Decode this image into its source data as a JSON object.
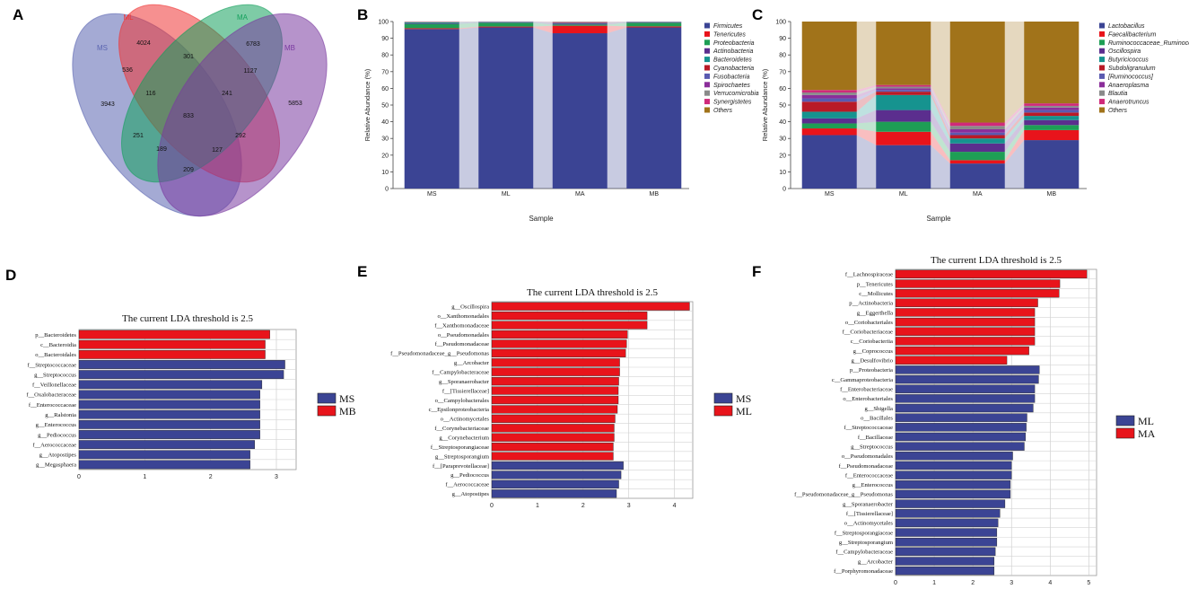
{
  "colors": {
    "ms": "#3b4494",
    "red": "#e8141b",
    "connector": "#c8cce0",
    "venn_ms": "#5a64b0",
    "venn_ml": "#ee3434",
    "venn_ma": "#14a05c",
    "venn_mb": "#7a3aa0"
  },
  "chart_data": [
    {
      "panel": "A",
      "type": "venn",
      "sets": [
        {
          "name": "MS",
          "color": "#5a64b0"
        },
        {
          "name": "ML",
          "color": "#ee3434"
        },
        {
          "name": "MA",
          "color": "#14a05c"
        },
        {
          "name": "MB",
          "color": "#7a3aa0"
        }
      ],
      "regions": [
        {
          "sets": "ML",
          "value": "4024"
        },
        {
          "sets": "MA",
          "value": "6783"
        },
        {
          "sets": "ML+MA",
          "value": "301"
        },
        {
          "sets": "MS+ML",
          "value": "536"
        },
        {
          "sets": "MA+MB",
          "value": "1127"
        },
        {
          "sets": "MS+ML+MA",
          "value": "116"
        },
        {
          "sets": "ML+MA+MB",
          "value": "241"
        },
        {
          "sets": "MS",
          "value": "3943"
        },
        {
          "sets": "MB",
          "value": "5853"
        },
        {
          "sets": "MS+ML+MA+MB",
          "value": "833"
        },
        {
          "sets": "MS+MA",
          "value": "251"
        },
        {
          "sets": "ML+MB",
          "value": "292"
        },
        {
          "sets": "MS+MA+MB",
          "value": "189"
        },
        {
          "sets": "MS+ML+MB",
          "value": "127"
        },
        {
          "sets": "MS+MB",
          "value": "209"
        }
      ]
    },
    {
      "panel": "B",
      "type": "bar",
      "stacked": true,
      "categories": [
        "MS",
        "ML",
        "MA",
        "MB"
      ],
      "xlabel": "Sample",
      "ylabel": "Relative Abundance (%)",
      "ylim": [
        0,
        100
      ],
      "yticks": [
        "0",
        "10",
        "20",
        "30",
        "40",
        "50",
        "60",
        "70",
        "80",
        "90",
        "100"
      ],
      "series": [
        {
          "name": "Firmicutes",
          "color": "#3b4494",
          "values": [
            95.5,
            96.5,
            93,
            96.5
          ]
        },
        {
          "name": "Tenericutes",
          "color": "#e8141b",
          "values": [
            0.5,
            0.5,
            4.5,
            0.6
          ]
        },
        {
          "name": "Proteobacteria",
          "color": "#1e9e55",
          "values": [
            2.6,
            2.3,
            0.7,
            2.2
          ]
        },
        {
          "name": "Actinobacteria",
          "color": "#5b2e8e",
          "values": [
            0.4,
            0.3,
            0.5,
            0.3
          ]
        },
        {
          "name": "Bacteroidetes",
          "color": "#16938f",
          "values": [
            0.5,
            0.2,
            0.3,
            0.2
          ]
        },
        {
          "name": "Cyanobacteria",
          "color": "#b91a26",
          "values": [
            0.1,
            0.05,
            0.2,
            0.05
          ]
        },
        {
          "name": "Fusobacteria",
          "color": "#5a5ab0",
          "values": [
            0.1,
            0.05,
            0.2,
            0.05
          ]
        },
        {
          "name": "Spirochaetes",
          "color": "#8b2e9a",
          "values": [
            0.1,
            0.05,
            0.2,
            0.05
          ]
        },
        {
          "name": "Verrucomicrobia",
          "color": "#8a8a8a",
          "values": [
            0.05,
            0.05,
            0.2,
            0.02
          ]
        },
        {
          "name": "Synergistetes",
          "color": "#d02a7a",
          "values": [
            0.05,
            0.05,
            0.1,
            0.03
          ]
        },
        {
          "name": "Others",
          "color": "#a1731a",
          "values": [
            0.1,
            0,
            0.1,
            0
          ]
        }
      ]
    },
    {
      "panel": "C",
      "type": "bar",
      "stacked": true,
      "categories": [
        "MS",
        "ML",
        "MA",
        "MB"
      ],
      "xlabel": "Sample",
      "ylabel": "Relative Abundance (%)",
      "ylim": [
        0,
        100
      ],
      "yticks": [
        "0",
        "10",
        "20",
        "30",
        "40",
        "50",
        "60",
        "70",
        "80",
        "90",
        "100"
      ],
      "series": [
        {
          "name": "Lactobacillus",
          "color": "#3b4494",
          "values": [
            32,
            26,
            15,
            29
          ]
        },
        {
          "name": "Faecalibacterium",
          "color": "#e8141b",
          "values": [
            4,
            8,
            2,
            6
          ]
        },
        {
          "name": "Ruminococcaceae_Ruminococcus",
          "color": "#1e9e55",
          "values": [
            3,
            6,
            5,
            3
          ]
        },
        {
          "name": "Oscillospira",
          "color": "#5b2e8e",
          "values": [
            3,
            7,
            5,
            3
          ]
        },
        {
          "name": "Butyricicoccus",
          "color": "#16938f",
          "values": [
            4,
            9,
            3,
            2.5
          ]
        },
        {
          "name": "Subdoligranulum",
          "color": "#b91a26",
          "values": [
            6,
            2,
            2,
            2
          ]
        },
        {
          "name": "[Ruminococcus]",
          "color": "#5a5ab0",
          "values": [
            2,
            1,
            1.5,
            1.5
          ]
        },
        {
          "name": "Anaeroplasma",
          "color": "#8b2e9a",
          "values": [
            2,
            1,
            2,
            1.5
          ]
        },
        {
          "name": "Blautia",
          "color": "#8a8a8a",
          "values": [
            1.5,
            1,
            2,
            1
          ]
        },
        {
          "name": "Anaerotruncus",
          "color": "#d02a7a",
          "values": [
            1.5,
            1,
            2,
            1.5
          ]
        },
        {
          "name": "Others",
          "color": "#a1731a",
          "values": [
            41,
            38,
            60.5,
            49
          ]
        }
      ]
    },
    {
      "panel": "D",
      "type": "bar",
      "orientation": "horizontal",
      "title": "The current LDA threshold is 2.5",
      "xlim": [
        0,
        3.3
      ],
      "xticks": [
        "0",
        "1",
        "2",
        "3"
      ],
      "legend": [
        {
          "name": "MS",
          "color": "#3b4494"
        },
        {
          "name": "MB",
          "color": "#e8141b"
        }
      ],
      "bars": [
        {
          "label": "p__Bacteroidetes",
          "value": 2.9,
          "group": "MB"
        },
        {
          "label": "c__Bacteroidia",
          "value": 2.83,
          "group": "MB"
        },
        {
          "label": "o__Bacteroidales",
          "value": 2.83,
          "group": "MB"
        },
        {
          "label": "f__Streptococcaceae",
          "value": 3.13,
          "group": "MS"
        },
        {
          "label": "g__Streptococcus",
          "value": 3.11,
          "group": "MS"
        },
        {
          "label": "f__Veillonellaceae",
          "value": 2.78,
          "group": "MS"
        },
        {
          "label": "f__Oxalobacteraceae",
          "value": 2.75,
          "group": "MS"
        },
        {
          "label": "f__Enterococcaceae",
          "value": 2.75,
          "group": "MS"
        },
        {
          "label": "g__Ralstonia",
          "value": 2.75,
          "group": "MS"
        },
        {
          "label": "g__Enterococcus",
          "value": 2.75,
          "group": "MS"
        },
        {
          "label": "g__Pediococcus",
          "value": 2.75,
          "group": "MS"
        },
        {
          "label": "f__Aerococcaceae",
          "value": 2.67,
          "group": "MS"
        },
        {
          "label": "g__Atopostipes",
          "value": 2.6,
          "group": "MS"
        },
        {
          "label": "g__Megasphaera",
          "value": 2.6,
          "group": "MS"
        }
      ]
    },
    {
      "panel": "E",
      "type": "bar",
      "orientation": "horizontal",
      "title": "The current LDA threshold is 2.5",
      "xlim": [
        0,
        4.4
      ],
      "xticks": [
        "0",
        "1",
        "2",
        "3",
        "4"
      ],
      "legend": [
        {
          "name": "MS",
          "color": "#3b4494"
        },
        {
          "name": "ML",
          "color": "#e8141b"
        }
      ],
      "bars": [
        {
          "label": "g__Oscillospira",
          "value": 4.33,
          "group": "ML"
        },
        {
          "label": "o__Xanthomonadales",
          "value": 3.4,
          "group": "ML"
        },
        {
          "label": "f__Xanthomonadaceae",
          "value": 3.4,
          "group": "ML"
        },
        {
          "label": "o__Pseudomonadales",
          "value": 2.97,
          "group": "ML"
        },
        {
          "label": "f__Pseudomonadaceae",
          "value": 2.95,
          "group": "ML"
        },
        {
          "label": "f__Pseudomonadaceae_g__Pseudomonas",
          "value": 2.93,
          "group": "ML"
        },
        {
          "label": "g__Arcobacter",
          "value": 2.8,
          "group": "ML"
        },
        {
          "label": "f__Campylobacteraceae",
          "value": 2.8,
          "group": "ML"
        },
        {
          "label": "g__Sporanaerobacter",
          "value": 2.78,
          "group": "ML"
        },
        {
          "label": "f__[Tissierellaceae]",
          "value": 2.77,
          "group": "ML"
        },
        {
          "label": "o__Campylobacterales",
          "value": 2.77,
          "group": "ML"
        },
        {
          "label": "c__Epsilonproteobacteria",
          "value": 2.75,
          "group": "ML"
        },
        {
          "label": "o__Actinomycetales",
          "value": 2.7,
          "group": "ML"
        },
        {
          "label": "f__Corynebacteriaceae",
          "value": 2.68,
          "group": "ML"
        },
        {
          "label": "g__Corynebacterium",
          "value": 2.68,
          "group": "ML"
        },
        {
          "label": "f__Streptosporangiaceae",
          "value": 2.66,
          "group": "ML"
        },
        {
          "label": "g__Streptosporangium",
          "value": 2.66,
          "group": "ML"
        },
        {
          "label": "f__[Paraprevotellaceae]",
          "value": 2.88,
          "group": "MS"
        },
        {
          "label": "g__Pediococcus",
          "value": 2.83,
          "group": "MS"
        },
        {
          "label": "f__Aerococcaceae",
          "value": 2.78,
          "group": "MS"
        },
        {
          "label": "g__Atopostipes",
          "value": 2.73,
          "group": "MS"
        }
      ]
    },
    {
      "panel": "F",
      "type": "bar",
      "orientation": "horizontal",
      "title": "The current LDA threshold is 2.5",
      "xlim": [
        0,
        5.2
      ],
      "xticks": [
        "0",
        "1",
        "2",
        "3",
        "4",
        "5"
      ],
      "legend": [
        {
          "name": "ML",
          "color": "#3b4494"
        },
        {
          "name": "MA",
          "color": "#e8141b"
        }
      ],
      "bars": [
        {
          "label": "f__Lachnospiraceae",
          "value": 4.95,
          "group": "MA"
        },
        {
          "label": "p__Tenericutes",
          "value": 4.25,
          "group": "MA"
        },
        {
          "label": "c__Mollicutes",
          "value": 4.23,
          "group": "MA"
        },
        {
          "label": "p__Actinobacteria",
          "value": 3.68,
          "group": "MA"
        },
        {
          "label": "g__Eggerthella",
          "value": 3.6,
          "group": "MA"
        },
        {
          "label": "o__Coriobacteriales",
          "value": 3.6,
          "group": "MA"
        },
        {
          "label": "f__Coriobacteriaceae",
          "value": 3.6,
          "group": "MA"
        },
        {
          "label": "c__Coriobacteriia",
          "value": 3.6,
          "group": "MA"
        },
        {
          "label": "g__Coprococcus",
          "value": 3.45,
          "group": "MA"
        },
        {
          "label": "g__Desulfovibrio",
          "value": 2.88,
          "group": "MA"
        },
        {
          "label": "p__Proteobacteria",
          "value": 3.72,
          "group": "ML"
        },
        {
          "label": "c__Gammaproteobacteria",
          "value": 3.7,
          "group": "ML"
        },
        {
          "label": "f__Enterobacteriaceae",
          "value": 3.6,
          "group": "ML"
        },
        {
          "label": "o__Enterobacteriales",
          "value": 3.6,
          "group": "ML"
        },
        {
          "label": "g__Shigella",
          "value": 3.56,
          "group": "ML"
        },
        {
          "label": "o__Bacillales",
          "value": 3.4,
          "group": "ML"
        },
        {
          "label": "f__Streptococcaceae",
          "value": 3.38,
          "group": "ML"
        },
        {
          "label": "f__Bacillaceae",
          "value": 3.36,
          "group": "ML"
        },
        {
          "label": "g__Streptococcus",
          "value": 3.33,
          "group": "ML"
        },
        {
          "label": "o__Pseudomonadales",
          "value": 3.03,
          "group": "ML"
        },
        {
          "label": "f__Pseudomonadaceae",
          "value": 3.0,
          "group": "ML"
        },
        {
          "label": "f__Enterococcaceae",
          "value": 3.0,
          "group": "ML"
        },
        {
          "label": "g__Enterococcus",
          "value": 2.97,
          "group": "ML"
        },
        {
          "label": "f__Pseudomonadaceae_g__Pseudomonas",
          "value": 2.97,
          "group": "ML"
        },
        {
          "label": "g__Sporanaerobacter",
          "value": 2.83,
          "group": "ML"
        },
        {
          "label": "f__[Tissierellaceae]",
          "value": 2.7,
          "group": "ML"
        },
        {
          "label": "o__Actinomycetales",
          "value": 2.65,
          "group": "ML"
        },
        {
          "label": "f__Streptosporangiaceae",
          "value": 2.62,
          "group": "ML"
        },
        {
          "label": "g__Streptosporangium",
          "value": 2.62,
          "group": "ML"
        },
        {
          "label": "f__Campylobacteraceae",
          "value": 2.58,
          "group": "ML"
        },
        {
          "label": "g__Arcobacter",
          "value": 2.55,
          "group": "ML"
        },
        {
          "label": "f__Porphyromonadaceae",
          "value": 2.55,
          "group": "ML"
        }
      ]
    }
  ]
}
